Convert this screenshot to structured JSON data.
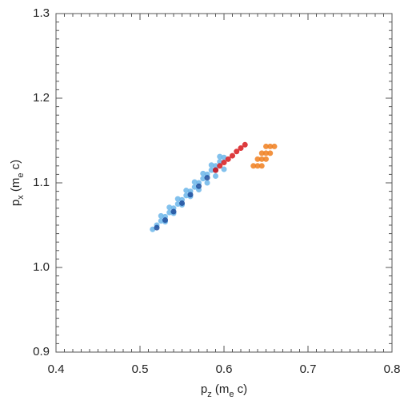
{
  "chart_data": {
    "type": "scatter",
    "xlabel": [
      "p",
      "z",
      " (m",
      "e",
      " c)"
    ],
    "ylabel": [
      "p",
      "x",
      " (m",
      "e",
      " c)"
    ],
    "xlim": [
      0.4,
      0.8
    ],
    "xticks": [
      0.4,
      0.5,
      0.6,
      0.7,
      0.8
    ],
    "ylim": [
      0.9,
      1.3
    ],
    "yticks": [
      0.9,
      {
        "value": 1,
        "label": "1.0"
      },
      1.1,
      1.2,
      1.3
    ],
    "grid": false,
    "series": [
      {
        "color": "#6cb6ea",
        "x": [
          0.515,
          0.52,
          0.525,
          0.53,
          0.535,
          0.54,
          0.545,
          0.55,
          0.555,
          0.56,
          0.565,
          0.57,
          0.575,
          0.58,
          0.585,
          0.59,
          0.595,
          0.6,
          0.525,
          0.535,
          0.545,
          0.555,
          0.565,
          0.575,
          0.585,
          0.595,
          0.53,
          0.54,
          0.55,
          0.56,
          0.57,
          0.58,
          0.59,
          0.6
        ],
        "values": [
          1.045,
          1.05,
          1.055,
          1.06,
          1.065,
          1.07,
          1.075,
          1.08,
          1.085,
          1.09,
          1.095,
          1.1,
          1.105,
          1.11,
          1.115,
          1.12,
          1.125,
          1.13,
          1.061,
          1.071,
          1.081,
          1.091,
          1.101,
          1.111,
          1.121,
          1.131,
          1.054,
          1.064,
          1.074,
          1.084,
          1.092,
          1.1,
          1.108,
          1.116
        ]
      },
      {
        "color": "#1f4e9c",
        "x": [
          0.52,
          0.53,
          0.54,
          0.55,
          0.56,
          0.57,
          0.58,
          0.59
        ],
        "values": [
          1.047,
          1.056,
          1.066,
          1.076,
          1.086,
          1.096,
          1.106,
          1.115
        ]
      },
      {
        "color": "#d7191c",
        "x": [
          0.59,
          0.595,
          0.6,
          0.605,
          0.61,
          0.615,
          0.62,
          0.625
        ],
        "values": [
          1.115,
          1.12,
          1.124,
          1.128,
          1.132,
          1.137,
          1.141,
          1.145
        ]
      },
      {
        "color": "#f07f1f",
        "x": [
          0.635,
          0.64,
          0.645,
          0.64,
          0.645,
          0.65,
          0.645,
          0.65,
          0.655,
          0.65,
          0.655,
          0.66
        ],
        "values": [
          1.12,
          1.12,
          1.12,
          1.128,
          1.128,
          1.128,
          1.135,
          1.135,
          1.135,
          1.143,
          1.143,
          1.143
        ]
      }
    ]
  }
}
